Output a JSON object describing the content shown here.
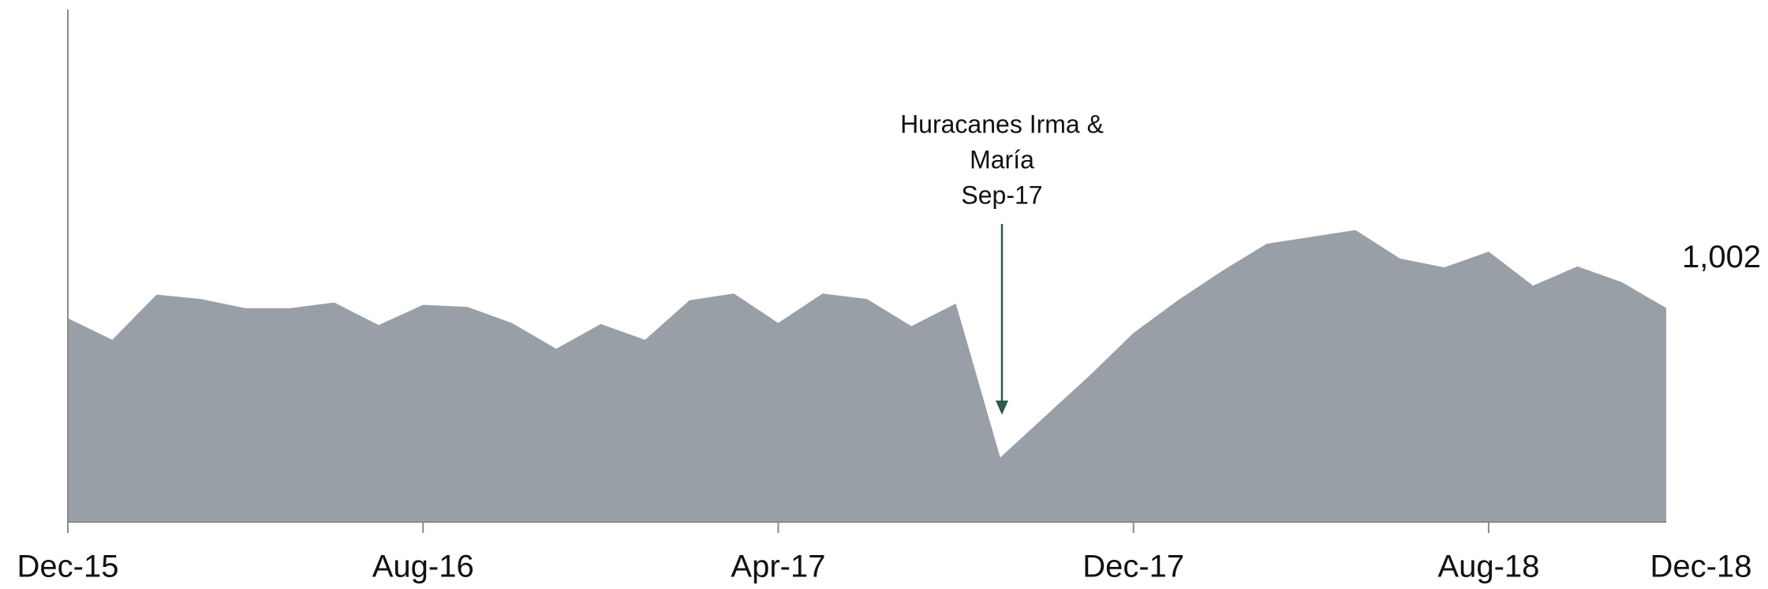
{
  "chart_data": {
    "type": "area",
    "categories": [
      "Dec-15",
      null,
      null,
      null,
      null,
      null,
      null,
      null,
      "Aug-16",
      null,
      null,
      null,
      null,
      null,
      null,
      null,
      "Apr-17",
      null,
      null,
      null,
      null,
      null,
      null,
      null,
      "Dec-17",
      null,
      null,
      null,
      null,
      null,
      null,
      null,
      "Aug-18",
      null,
      null,
      null,
      "Dec-18"
    ],
    "values": [
      954,
      853,
      1065,
      1044,
      1001,
      1001,
      1028,
      922,
      1017,
      1007,
      932,
      811,
      927,
      853,
      1038,
      1070,
      932,
      1070,
      1044,
      917,
      1023,
      302,
      493,
      683,
      885,
      1038,
      1176,
      1303,
      1335,
      1367,
      1234,
      1192,
      1266,
      1107,
      1197,
      1123,
      1002
    ],
    "value_labels": [
      null,
      null,
      null,
      null,
      null,
      null,
      null,
      null,
      null,
      null,
      null,
      null,
      null,
      null,
      null,
      null,
      null,
      null,
      null,
      null,
      null,
      null,
      null,
      null,
      null,
      null,
      null,
      null,
      null,
      null,
      null,
      null,
      null,
      null,
      null,
      null,
      "1,002"
    ],
    "color": "#989fa7",
    "ylim": [
      0,
      2400
    ],
    "annotation": [
      "Huracanes Irma &",
      "María",
      "Sep-17"
    ],
    "annotation_color": "#2f5a4a"
  }
}
